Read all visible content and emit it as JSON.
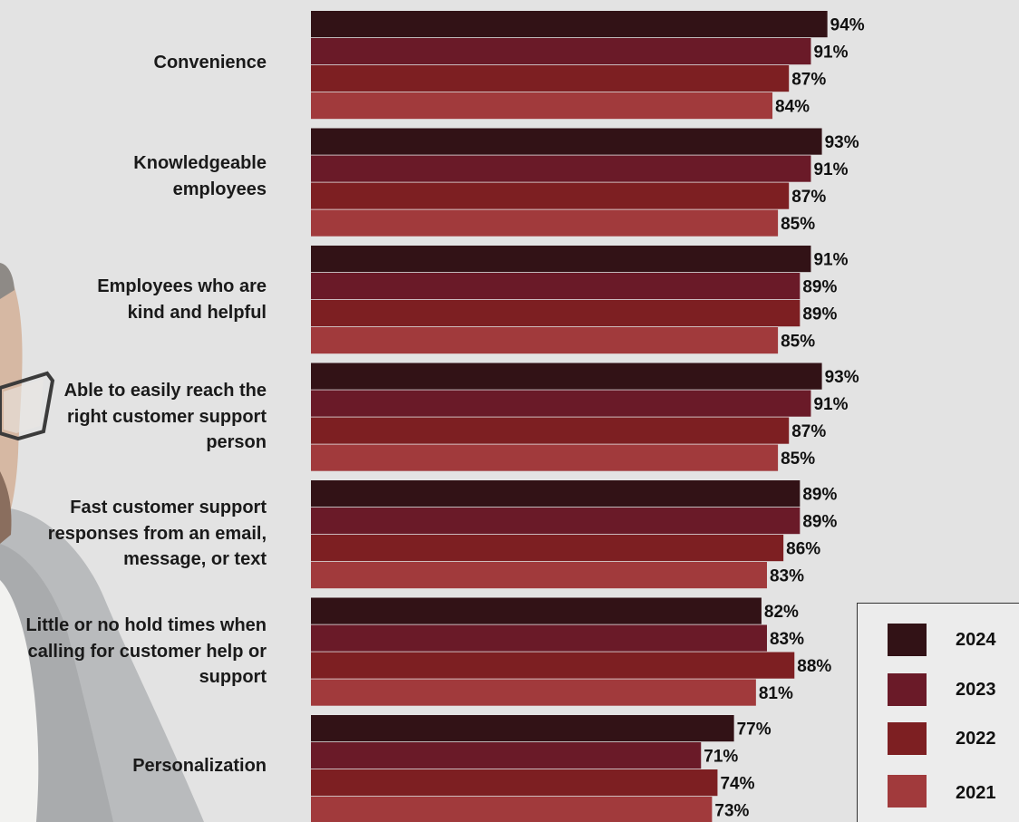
{
  "chart_data": {
    "type": "bar",
    "orientation": "horizontal",
    "categories": [
      "Convenience",
      "Knowledgeable\nemployees",
      "Employees who are\nkind and helpful",
      "Able to easily reach the\nright customer support\nperson",
      "Fast customer support\nresponses from an email,\nmessage, or text",
      "Little or no hold times when\ncalling for customer help or\nsupport",
      "Personalization"
    ],
    "series": [
      {
        "name": "2024",
        "color": "#321216",
        "values": [
          94,
          93,
          91,
          93,
          89,
          82,
          77
        ],
        "labels": [
          "94%",
          "93%",
          "91%",
          "93%",
          "89%",
          "82%",
          "77%"
        ]
      },
      {
        "name": "2023",
        "color": "#6a1a28",
        "values": [
          91,
          91,
          89,
          91,
          89,
          83,
          71
        ],
        "labels": [
          "91%",
          "91%",
          "89%",
          "91%",
          "89%",
          "83%",
          "71%"
        ]
      },
      {
        "name": "2022",
        "color": "#7d1f22",
        "values": [
          87,
          87,
          89,
          87,
          86,
          88,
          74
        ],
        "labels": [
          "87%",
          "87%",
          "89%",
          "87%",
          "86%",
          "88%",
          "74%"
        ]
      },
      {
        "name": "2021",
        "color": "#a13a3c",
        "values": [
          84,
          85,
          85,
          85,
          83,
          81,
          73
        ],
        "labels": [
          "84%",
          "85%",
          "85%",
          "85%",
          "83%",
          "81%",
          "73%"
        ]
      }
    ],
    "xlim": [
      0,
      100
    ],
    "value_format": "percent",
    "grid": false,
    "legend": {
      "position": "bottom-right",
      "entries": [
        "2024",
        "2023",
        "2022",
        "2021"
      ]
    }
  },
  "background": {
    "image": "person-photo",
    "color": "#e3e3e3"
  }
}
